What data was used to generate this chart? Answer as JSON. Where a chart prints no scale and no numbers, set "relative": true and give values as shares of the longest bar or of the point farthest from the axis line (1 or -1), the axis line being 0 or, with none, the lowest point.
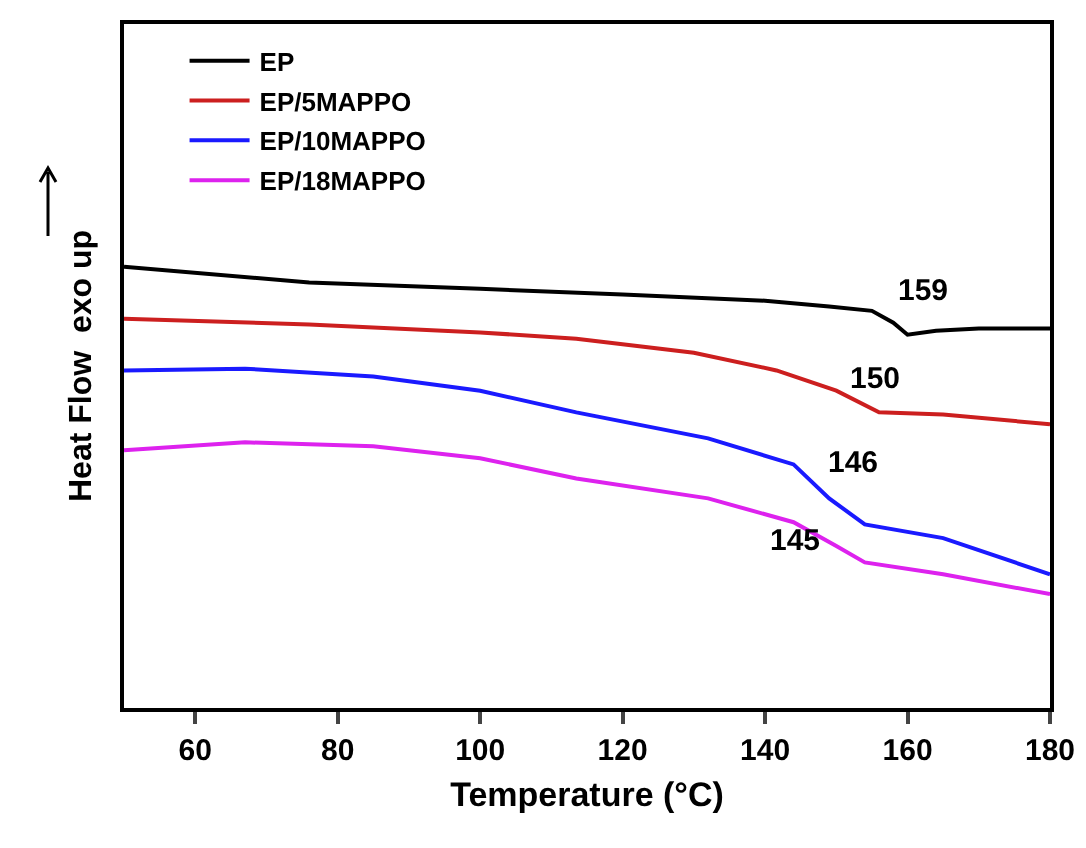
{
  "chart_data": {
    "type": "line",
    "xlabel": "Temperature (°C)",
    "ylabel": "Heat Flow  exo up",
    "relative": true,
    "xlim": [
      50,
      180
    ],
    "xticks": [
      60,
      80,
      100,
      120,
      140,
      160,
      180
    ],
    "legend": "top left",
    "grid": false,
    "marker": "none",
    "line_style": "solid",
    "series": [
      {
        "name": "EP",
        "color": "#000000",
        "x": [
          50,
          76,
          100,
          120,
          140,
          149,
          155,
          158,
          160,
          164,
          170,
          180
        ],
        "values": [
          1.0,
          0.964,
          0.95,
          0.937,
          0.923,
          0.91,
          0.9,
          0.873,
          0.846,
          0.855,
          0.86,
          0.86
        ]
      },
      {
        "name": "EP/5MAPPO",
        "color": "#cc1f1f",
        "x": [
          50,
          76,
          100,
          113.5,
          130,
          141.6,
          150,
          156,
          165,
          180
        ],
        "values": [
          0.882,
          0.869,
          0.851,
          0.837,
          0.805,
          0.765,
          0.719,
          0.67,
          0.665,
          0.643
        ]
      },
      {
        "name": "EP/10MAPPO",
        "color": "#1a1aff",
        "x": [
          50,
          67,
          85,
          100,
          113.5,
          132,
          144,
          149,
          154,
          165,
          180
        ],
        "values": [
          0.765,
          0.769,
          0.751,
          0.719,
          0.67,
          0.611,
          0.552,
          0.475,
          0.416,
          0.385,
          0.303
        ]
      },
      {
        "name": "EP/18MAPPO",
        "color": "#dd22ee",
        "x": [
          50,
          67,
          85,
          100,
          113.5,
          132,
          144,
          150,
          154,
          165,
          180
        ],
        "values": [
          0.584,
          0.602,
          0.593,
          0.566,
          0.52,
          0.475,
          0.421,
          0.367,
          0.33,
          0.303,
          0.258
        ]
      }
    ],
    "annotations": [
      "159",
      "150",
      "146",
      "145"
    ]
  }
}
